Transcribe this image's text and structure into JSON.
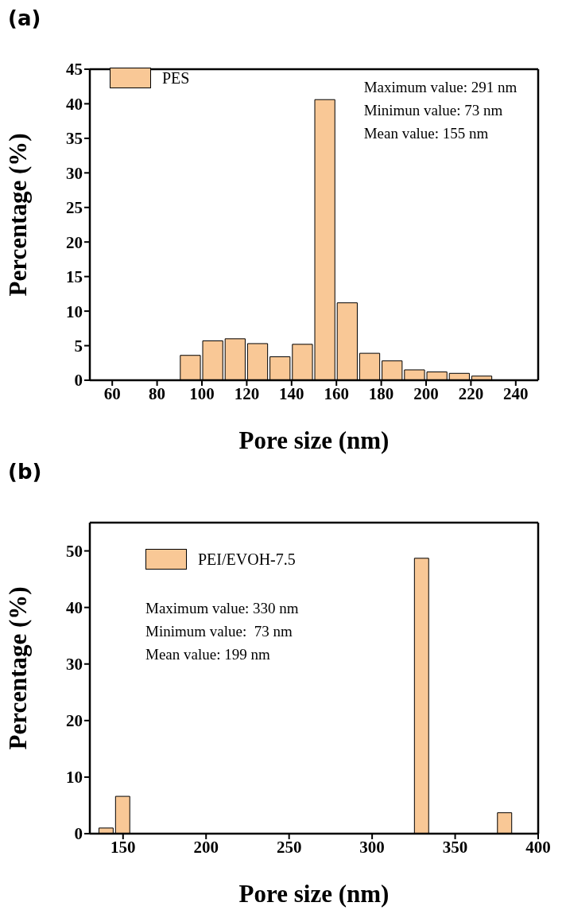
{
  "chart_data": [
    {
      "type": "histogram",
      "xlabel": "Pore size (nm)",
      "ylabel": "Percentage (%)",
      "annotations": [
        "(a)",
        "Maximum value: 291 nm",
        "Minimun value: 73 nm",
        "Mean value: 155 nm"
      ],
      "bins": [
        90,
        100,
        110,
        120,
        130,
        140,
        150,
        160,
        170,
        180,
        190,
        200,
        210,
        220,
        230
      ],
      "series": [
        {
          "name": "PES",
          "color": "#f9c896",
          "values": [
            3.6,
            5.7,
            6.0,
            5.3,
            3.4,
            5.2,
            40.6,
            11.2,
            3.9,
            2.8,
            1.5,
            1.2,
            1.0,
            0.6
          ]
        }
      ],
      "xlim": [
        50,
        250
      ],
      "xticks": [
        60,
        80,
        100,
        120,
        140,
        160,
        180,
        200,
        220,
        240
      ],
      "ylim": [
        0,
        45
      ],
      "yticks": [
        0,
        5,
        10,
        15,
        20,
        25,
        30,
        35,
        40,
        45
      ],
      "legend": "top left"
    },
    {
      "type": "histogram",
      "xlabel": "Pore size (nm)",
      "ylabel": "Percentage (%)",
      "annotations": [
        "(b)",
        "Maximum value: 330 nm",
        "Minimum value:  73 nm",
        "Mean value: 199 nm"
      ],
      "bins": [
        135,
        145,
        155,
        165,
        175,
        185,
        195,
        205,
        215,
        225,
        235,
        245,
        255,
        265,
        275,
        285,
        295,
        305,
        315,
        325,
        335,
        345,
        355,
        365,
        375,
        385
      ],
      "series": [
        {
          "name": "PEI/EVOH-7.5",
          "color": "#f9c896",
          "values": [
            1.0,
            6.6,
            0,
            0,
            0,
            0,
            0,
            0,
            0,
            0,
            0,
            0,
            0,
            0,
            0,
            0,
            0,
            0,
            0,
            48.7,
            0,
            0,
            0,
            0,
            3.7
          ]
        }
      ],
      "xlim": [
        130,
        400
      ],
      "xticks": [
        150,
        200,
        250,
        300,
        350,
        400
      ],
      "ylim": [
        0,
        55
      ],
      "yticks": [
        0,
        10,
        20,
        30,
        40,
        50
      ],
      "legend": "top left"
    }
  ]
}
